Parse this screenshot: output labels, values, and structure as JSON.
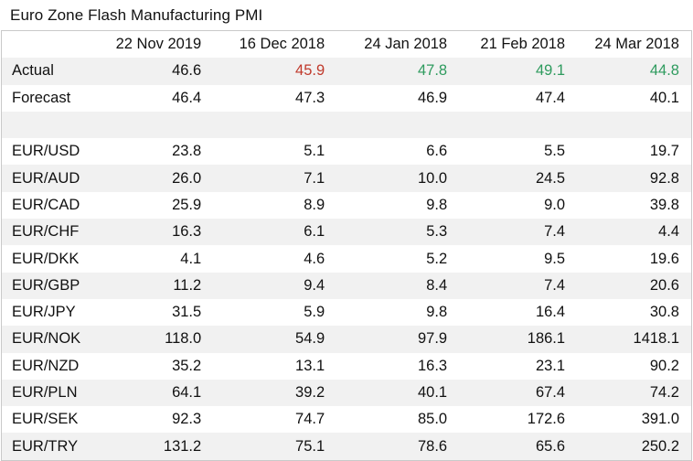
{
  "title": "Euro Zone Flash Manufacturing PMI",
  "colors": {
    "red": "#c0392b",
    "green": "#2e9b5e",
    "shade": "#f1f1f1"
  },
  "columns": [
    "22 Nov 2019",
    "16 Dec 2018",
    "24 Jan 2018",
    "21 Feb 2018",
    "24 Mar 2018"
  ],
  "actual": {
    "label": "Actual",
    "values": [
      "46.6",
      "45.9",
      "47.8",
      "49.1",
      "44.8"
    ],
    "colors": [
      "default",
      "red",
      "green",
      "green",
      "green"
    ]
  },
  "forecast": {
    "label": "Forecast",
    "values": [
      "46.4",
      "47.3",
      "46.9",
      "47.4",
      "40.1"
    ]
  },
  "pairs": [
    {
      "label": "EUR/USD",
      "values": [
        "23.8",
        "5.1",
        "6.6",
        "5.5",
        "19.7"
      ]
    },
    {
      "label": "EUR/AUD",
      "values": [
        "26.0",
        "7.1",
        "10.0",
        "24.5",
        "92.8"
      ]
    },
    {
      "label": "EUR/CAD",
      "values": [
        "25.9",
        "8.9",
        "9.8",
        "9.0",
        "39.8"
      ]
    },
    {
      "label": "EUR/CHF",
      "values": [
        "16.3",
        "6.1",
        "5.3",
        "7.4",
        "4.4"
      ]
    },
    {
      "label": "EUR/DKK",
      "values": [
        "4.1",
        "4.6",
        "5.2",
        "9.5",
        "19.6"
      ]
    },
    {
      "label": "EUR/GBP",
      "values": [
        "11.2",
        "9.4",
        "8.4",
        "7.4",
        "20.6"
      ]
    },
    {
      "label": "EUR/JPY",
      "values": [
        "31.5",
        "5.9",
        "9.8",
        "16.4",
        "30.8"
      ]
    },
    {
      "label": "EUR/NOK",
      "values": [
        "118.0",
        "54.9",
        "97.9",
        "186.1",
        "1418.1"
      ]
    },
    {
      "label": "EUR/NZD",
      "values": [
        "35.2",
        "13.1",
        "16.3",
        "23.1",
        "90.2"
      ]
    },
    {
      "label": "EUR/PLN",
      "values": [
        "64.1",
        "39.2",
        "40.1",
        "67.4",
        "74.2"
      ]
    },
    {
      "label": "EUR/SEK",
      "values": [
        "92.3",
        "74.7",
        "85.0",
        "172.6",
        "391.0"
      ]
    },
    {
      "label": "EUR/TRY",
      "values": [
        "131.2",
        "75.1",
        "78.6",
        "65.6",
        "250.2"
      ]
    }
  ]
}
